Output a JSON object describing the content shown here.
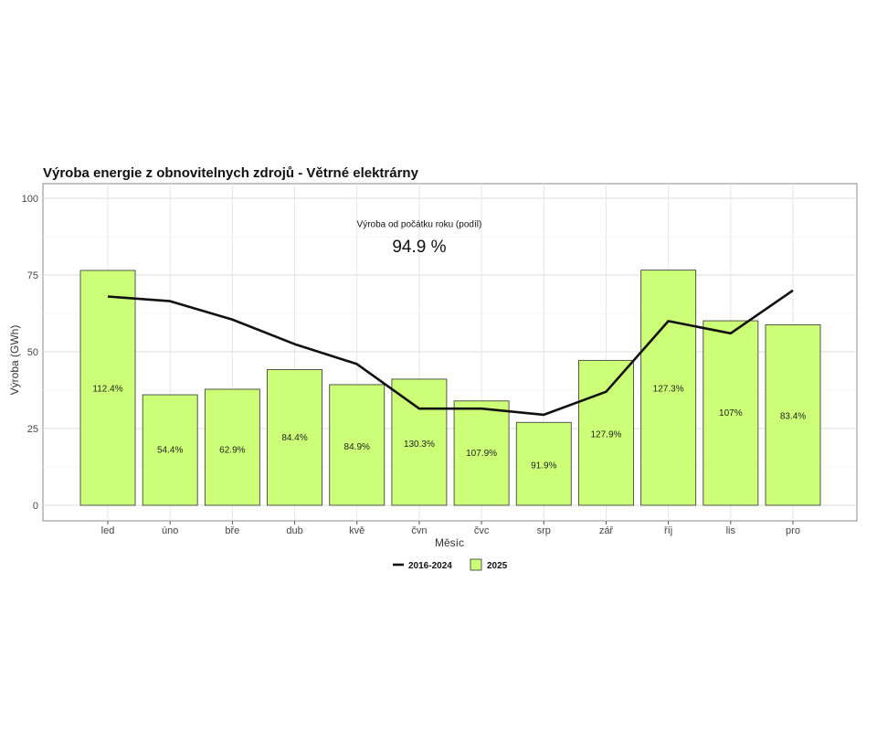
{
  "chart_data": {
    "type": "bar",
    "title": "Výroba energie z obnovitelnych zdrojů - Větrné elektrárny",
    "xlabel": "Měsíc",
    "ylabel": "Výroba (GWh)",
    "ylim": [
      0,
      100
    ],
    "yticks": [
      0,
      25,
      50,
      75,
      100
    ],
    "grid": true,
    "categories": [
      "led",
      "úno",
      "bře",
      "dub",
      "kvě",
      "čvn",
      "čvc",
      "srp",
      "zář",
      "říj",
      "lis",
      "pro"
    ],
    "series": [
      {
        "name": "2025",
        "kind": "bar",
        "color": "#ccff77",
        "values": [
          76.5,
          36,
          37.8,
          44.2,
          39.3,
          41.1,
          34,
          27,
          47.2,
          76.6,
          60.1,
          58.8
        ],
        "labels": [
          "112.4%",
          "54.4%",
          "62.9%",
          "84.4%",
          "84.9%",
          "130.3%",
          "107.9%",
          "91.9%",
          "127.9%",
          "127.3%",
          "107%",
          "83.4%"
        ],
        "label_y": [
          38,
          18,
          18,
          22,
          19,
          20,
          17,
          13,
          23,
          38,
          30,
          29
        ]
      },
      {
        "name": "2016-2024",
        "kind": "line",
        "color": "#111111",
        "values": [
          68,
          66.5,
          60.5,
          52.5,
          46,
          31.5,
          31.5,
          29.5,
          37,
          60,
          56,
          70
        ]
      }
    ],
    "annotation": {
      "label": "Výroba od počátku roku (podíl)",
      "value": "94.9 %",
      "label_pos": [
        5.0,
        91.5
      ],
      "value_pos": [
        5.0,
        84.5
      ]
    },
    "legend": {
      "position": "bottom",
      "items": [
        {
          "name": "2016-2024",
          "symbol": "line"
        },
        {
          "name": "2025",
          "symbol": "box"
        }
      ]
    }
  }
}
